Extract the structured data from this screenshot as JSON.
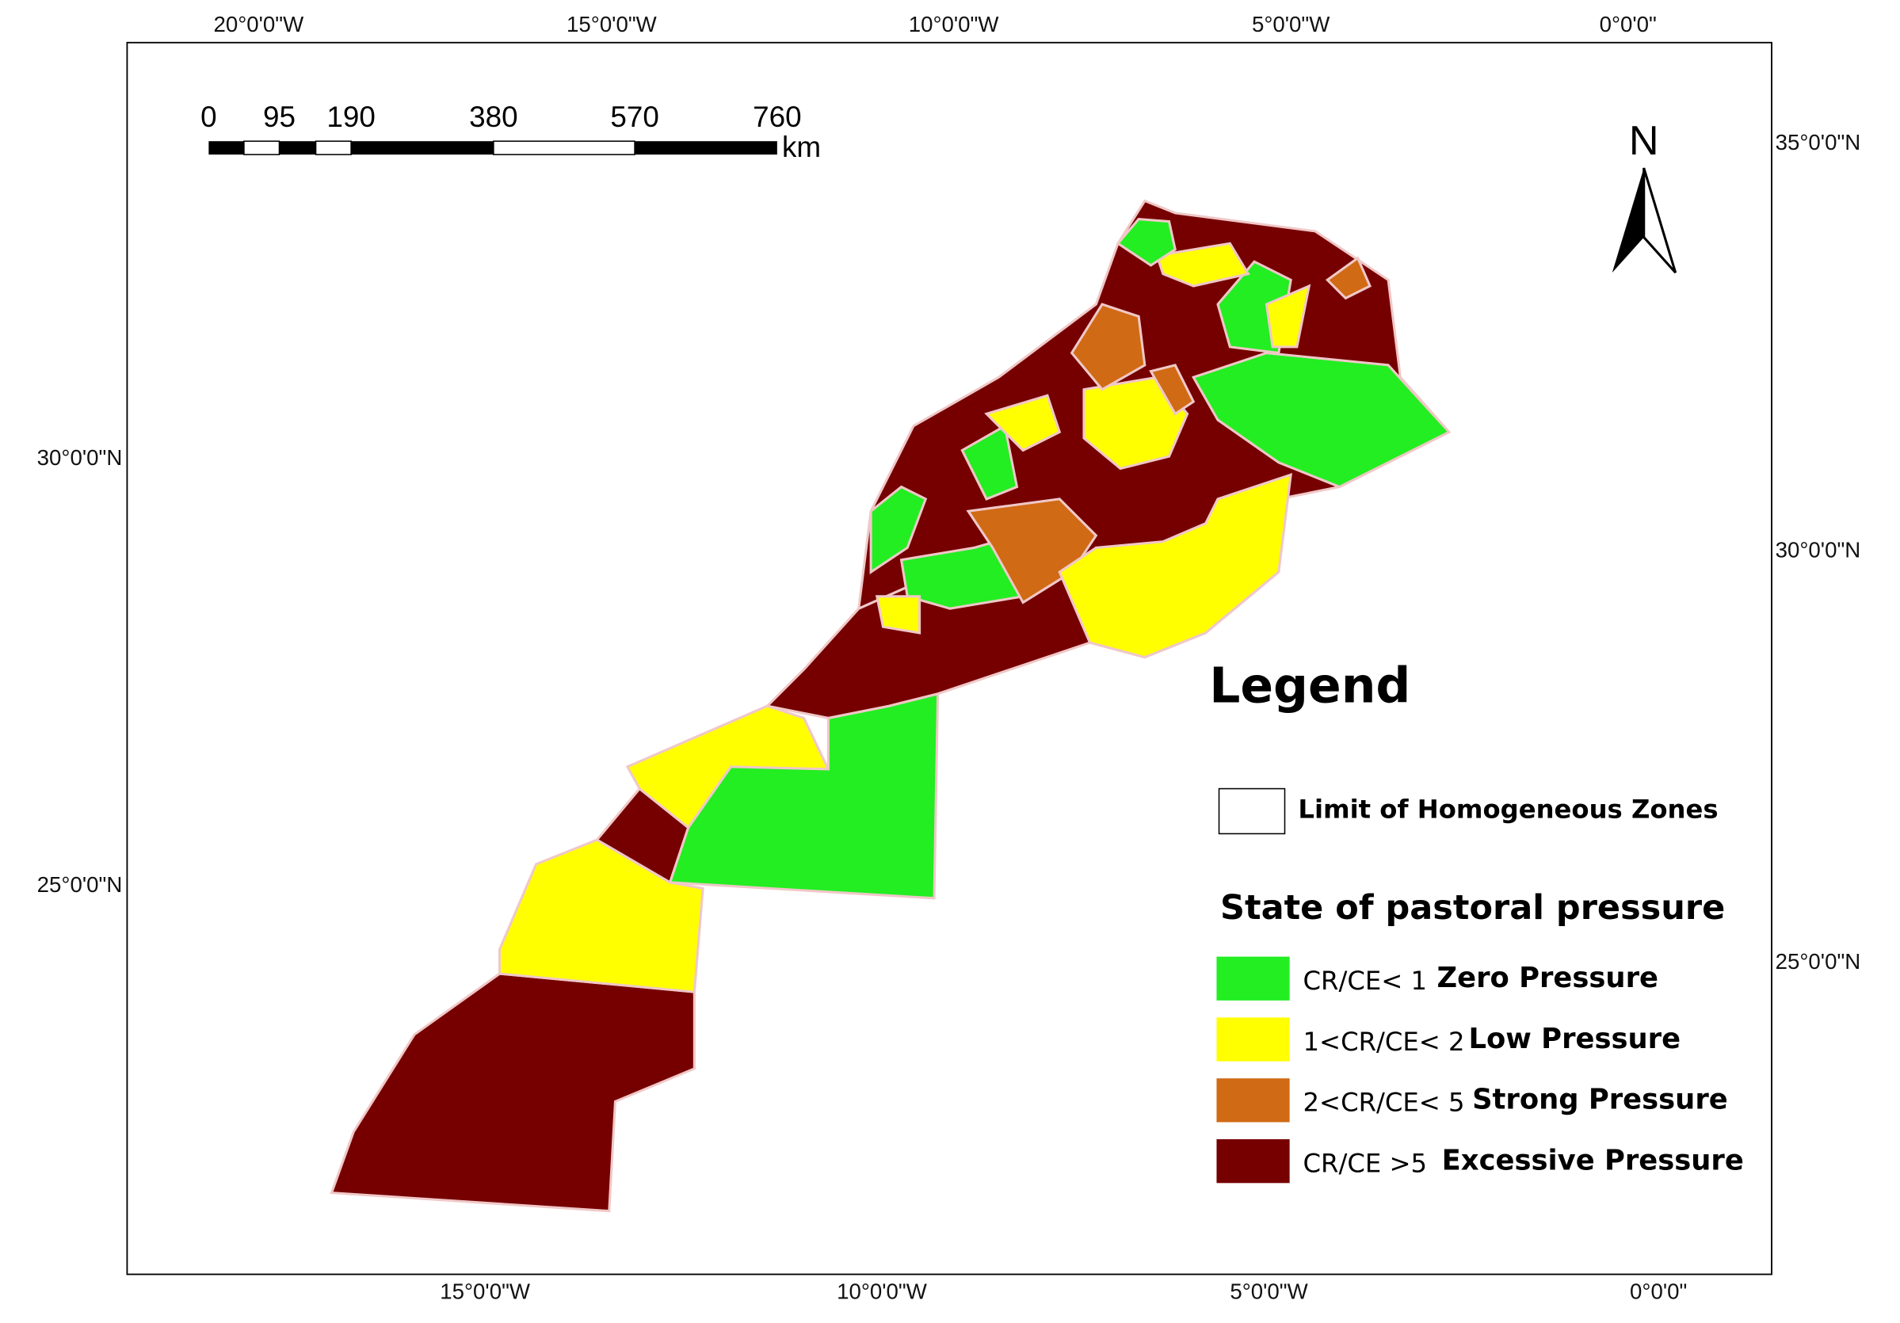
{
  "graticule": {
    "top": [
      "20°0'0\"W",
      "15°0'0\"W",
      "10°0'0\"W",
      "5°0'0\"W",
      "0°0'0\""
    ],
    "bottom": [
      "15°0'0\"W",
      "10°0'0\"W",
      "5°0'0\"W",
      "0°0'0\""
    ],
    "left": [
      "30°0'0\"N",
      "25°0'0\"N"
    ],
    "right": [
      "35°0'0\"N",
      "30°0'0\"N",
      "25°0'0\"N"
    ]
  },
  "scale_bar": {
    "labels": [
      "0",
      "95",
      "190",
      "380",
      "570",
      "760"
    ],
    "unit": "km"
  },
  "north": "N",
  "legend": {
    "title": "Legend",
    "boundary_label": "Limit of Homogeneous Zones",
    "subtitle": "State of pastoral pressure",
    "items": [
      {
        "range": "CR/CE< 1",
        "label": "Zero Pressure"
      },
      {
        "range": "1<CR/CE< 2",
        "label": "Low Pressure"
      },
      {
        "range": "2<CR/CE< 5",
        "label": "Strong Pressure"
      },
      {
        "range": "CR/CE >5",
        "label": "Excessive Pressure"
      }
    ]
  }
}
